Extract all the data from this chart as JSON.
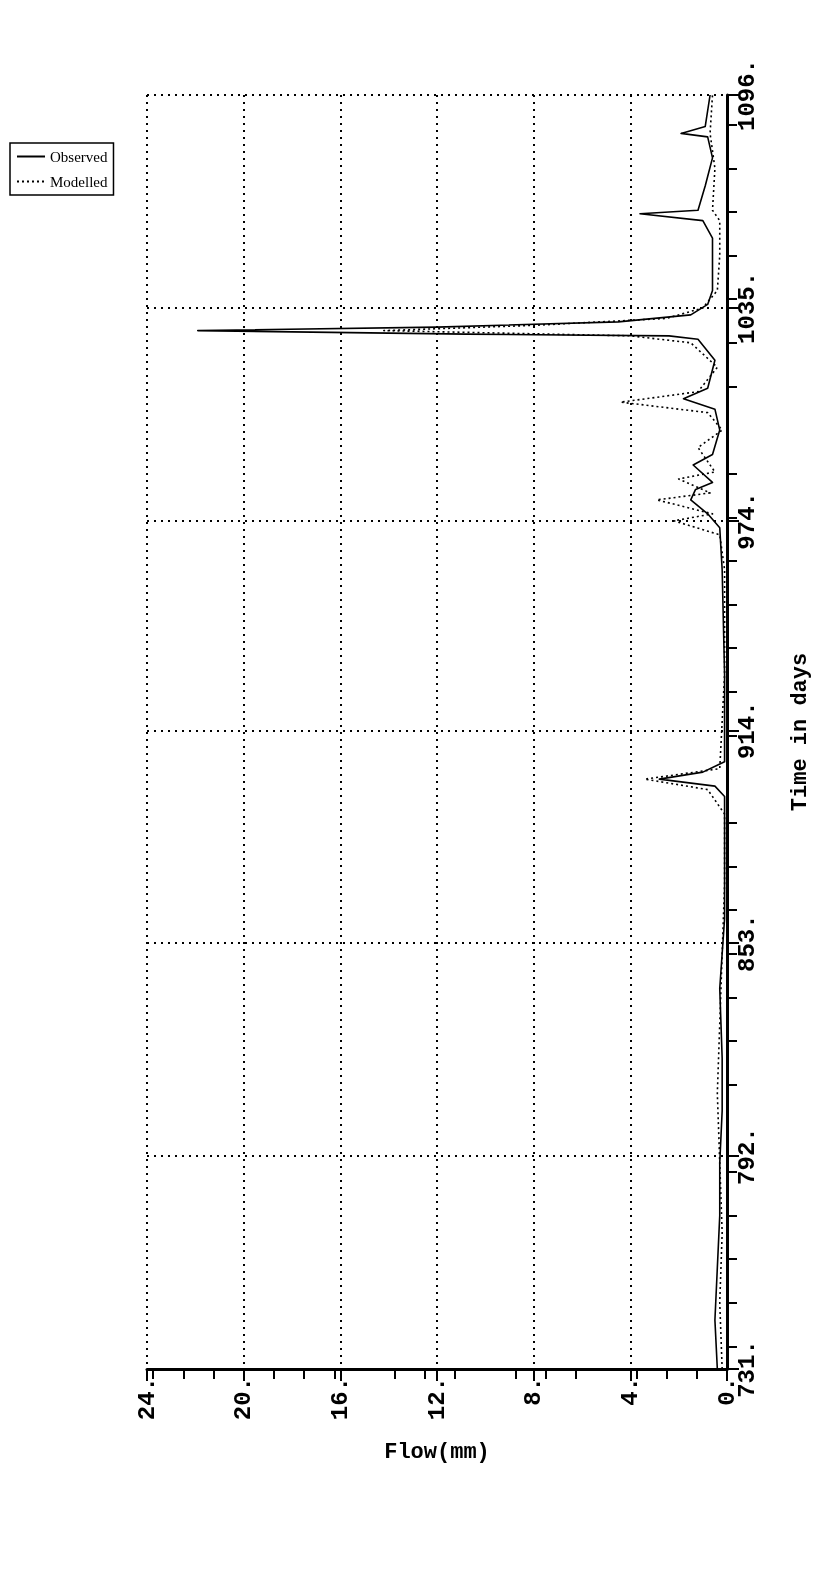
{
  "chart_data": {
    "type": "line",
    "orientation": "horizontal",
    "xlabel": "Flow(mm)",
    "ylabel": "Time in days",
    "xlim": [
      24,
      0
    ],
    "ylim": [
      731,
      1096
    ],
    "xticks": [
      {
        "value": 24,
        "label": "24."
      },
      {
        "value": 20,
        "label": "20."
      },
      {
        "value": 16,
        "label": "16."
      },
      {
        "value": 12,
        "label": "12."
      },
      {
        "value": 8,
        "label": "8."
      },
      {
        "value": 4,
        "label": "4."
      },
      {
        "value": 0,
        "label": "0."
      }
    ],
    "yticks": [
      {
        "value": 731,
        "label": "731."
      },
      {
        "value": 792,
        "label": "792."
      },
      {
        "value": 853,
        "label": "853."
      },
      {
        "value": 914,
        "label": "914."
      },
      {
        "value": 974,
        "label": "974."
      },
      {
        "value": 1035,
        "label": "1035."
      },
      {
        "value": 1096,
        "label": "1096."
      }
    ],
    "grid": true,
    "legend": "top left",
    "marker": "none",
    "series": [
      {
        "name": "Observed",
        "color": "#000000",
        "line_style": "solid",
        "x": [
          731,
          745,
          760,
          775,
          790,
          805,
          820,
          840,
          860,
          880,
          895,
          898,
          900,
          902,
          905,
          930,
          960,
          972,
          976,
          980,
          983,
          985,
          990,
          993,
          1000,
          1006,
          1009,
          1012,
          1020,
          1026,
          1027,
          1027.5,
          1028.5,
          1029.5,
          1031,
          1033,
          1036,
          1040,
          1055,
          1060,
          1062,
          1063,
          1070,
          1078,
          1084,
          1085,
          1087,
          1096
        ],
        "values": [
          0.4,
          0.5,
          0.4,
          0.3,
          0.3,
          0.2,
          0.2,
          0.3,
          0.1,
          0.1,
          0.1,
          0.5,
          2.8,
          1.0,
          0.1,
          0.1,
          0.2,
          0.3,
          0.8,
          1.5,
          1.3,
          0.6,
          1.4,
          0.6,
          0.3,
          0.5,
          1.8,
          0.8,
          0.5,
          1.2,
          2.4,
          10.8,
          21.9,
          12,
          4.5,
          1.5,
          0.8,
          0.6,
          0.6,
          1.0,
          3.6,
          1.2,
          0.9,
          0.6,
          0.8,
          1.9,
          0.9,
          0.7
        ]
      },
      {
        "name": "Modelled",
        "color": "#000000",
        "line_style": "dotted",
        "x": [
          731,
          750,
          770,
          790,
          810,
          830,
          850,
          870,
          890,
          897,
          900,
          903,
          930,
          960,
          970,
          974,
          976,
          980,
          982,
          986,
          988,
          995,
          1000,
          1005,
          1008,
          1011,
          1018,
          1025,
          1027,
          1028.5,
          1030,
          1032,
          1035,
          1040,
          1050,
          1060,
          1063,
          1075,
          1085,
          1096
        ],
        "values": [
          0.2,
          0.3,
          0.2,
          0.3,
          0.4,
          0.3,
          0.2,
          0.1,
          0.1,
          0.8,
          3.4,
          0.3,
          0.1,
          0.1,
          0.3,
          2.2,
          0.6,
          2.9,
          0.7,
          2.0,
          0.5,
          1.2,
          0.2,
          0.8,
          4.4,
          1.2,
          0.4,
          1.5,
          4.0,
          14.2,
          8.0,
          2.5,
          1.0,
          0.4,
          0.3,
          0.3,
          0.6,
          0.5,
          0.7,
          0.6
        ]
      }
    ]
  }
}
